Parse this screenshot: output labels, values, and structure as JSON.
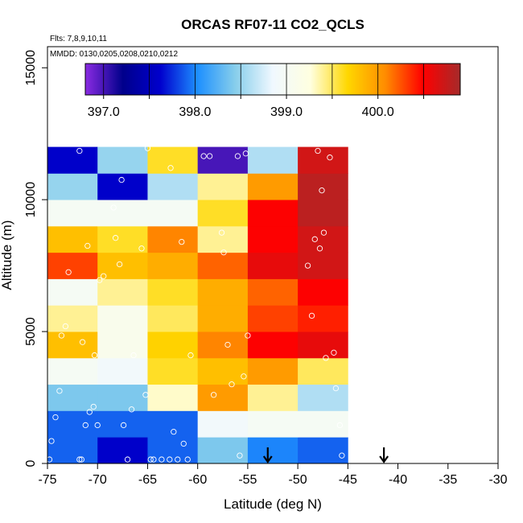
{
  "chart_data": {
    "type": "heatmap",
    "title": "ORCAS RF07-11 CO2_QCLS",
    "subtitle_flights": "Flts: 7,8,9,10,11",
    "subtitle_dates": "MMDD: 0130,0205,0208,0210,0212",
    "xlabel": "Latitude (deg N)",
    "ylabel": "Altitude (m)",
    "xlim": [
      -75,
      -30
    ],
    "ylim": [
      0,
      15800
    ],
    "x_ticks": [
      -75,
      -70,
      -65,
      -60,
      -55,
      -50,
      -45,
      -40,
      -35,
      -30
    ],
    "x_tick_labels": [
      "-75",
      "-70",
      "-65",
      "-60",
      "-55",
      "-50",
      "-45",
      "-40",
      "-35",
      "-30"
    ],
    "y_ticks": [
      0,
      5000,
      10000,
      15000
    ],
    "y_tick_labels": [
      "0",
      "5000",
      "10000",
      "15000"
    ],
    "colorbar": {
      "min": 396.8,
      "max": 400.9,
      "tick_values": [
        397.0,
        398.0,
        399.0,
        400.0
      ],
      "tick_labels": [
        "397.0",
        "398.0",
        "399.0",
        "400.0"
      ],
      "colors": [
        "#8a2be2",
        "#00008b",
        "#0000cd",
        "#1e90ff",
        "#87ceeb",
        "#f0f8ff",
        "#ffffe0",
        "#ffd700",
        "#ff8c00",
        "#ff0000",
        "#a52a2a"
      ]
    },
    "lat_bin_edges": [
      -75,
      -70,
      -65,
      -60,
      -55,
      -50,
      -45
    ],
    "alt_bin_edges": [
      0,
      1000,
      2000,
      3000,
      4000,
      5000,
      6000,
      7000,
      8000,
      9000,
      10000,
      11000,
      12000
    ],
    "grid_values": [
      [
        397.9,
        397.6,
        397.9,
        398.4,
        398.0,
        397.9
      ],
      [
        397.9,
        397.9,
        397.9,
        398.9,
        399.0,
        399.0
      ],
      [
        398.4,
        398.4,
        399.3,
        400.0,
        399.4,
        398.6
      ],
      [
        399.0,
        398.9,
        399.6,
        399.8,
        400.0,
        399.5
      ],
      [
        399.8,
        399.1,
        399.7,
        400.1,
        400.5,
        400.6
      ],
      [
        399.4,
        399.1,
        399.5,
        399.9,
        400.3,
        400.4
      ],
      [
        399.0,
        399.4,
        399.6,
        399.9,
        400.2,
        400.5
      ],
      [
        400.3,
        399.8,
        399.9,
        400.2,
        400.6,
        400.7
      ],
      [
        399.8,
        399.6,
        400.1,
        399.4,
        400.5,
        400.7
      ],
      [
        399.0,
        399.0,
        399.0,
        399.6,
        400.5,
        400.8
      ],
      [
        398.5,
        397.6,
        398.6,
        399.4,
        400.0,
        400.8
      ],
      [
        397.6,
        398.5,
        399.6,
        397.0,
        398.6,
        400.7
      ]
    ],
    "observations": [
      [
        -74.8,
        150
      ],
      [
        -74.6,
        850
      ],
      [
        -74.2,
        1750
      ],
      [
        -73.8,
        2750
      ],
      [
        -72.9,
        7250
      ],
      [
        -73.6,
        4850
      ],
      [
        -73.2,
        5200
      ],
      [
        -71.8,
        11850
      ],
      [
        -71.6,
        150
      ],
      [
        -71.8,
        150
      ],
      [
        -71.2,
        1450
      ],
      [
        -70.8,
        1950
      ],
      [
        -70.4,
        2150
      ],
      [
        -70.0,
        1450
      ],
      [
        -71.0,
        8250
      ],
      [
        -71.5,
        4600
      ],
      [
        -70.3,
        4100
      ],
      [
        -69.8,
        6950
      ],
      [
        -69.4,
        7100
      ],
      [
        -68.4,
        9700
      ],
      [
        -68.2,
        8550
      ],
      [
        -67.8,
        7550
      ],
      [
        -67.6,
        10750
      ],
      [
        -67.4,
        1450
      ],
      [
        -67.0,
        150
      ],
      [
        -66.6,
        2050
      ],
      [
        -66.4,
        4100
      ],
      [
        -65.6,
        8150
      ],
      [
        -65.2,
        2600
      ],
      [
        -65.0,
        11950
      ],
      [
        -64.7,
        150
      ],
      [
        -64.4,
        150
      ],
      [
        -63.6,
        150
      ],
      [
        -62.8,
        150
      ],
      [
        -62.7,
        11200
      ],
      [
        -62.4,
        1200
      ],
      [
        -62.0,
        150
      ],
      [
        -61.6,
        8400
      ],
      [
        -61.4,
        750
      ],
      [
        -61.0,
        150
      ],
      [
        -60.7,
        4100
      ],
      [
        -59.4,
        11650
      ],
      [
        -58.8,
        11650
      ],
      [
        -58.4,
        2600
      ],
      [
        -57.6,
        8750
      ],
      [
        -57.4,
        8000
      ],
      [
        -57.0,
        4500
      ],
      [
        -56.6,
        3000
      ],
      [
        -56.0,
        11650
      ],
      [
        -55.8,
        300
      ],
      [
        -55.4,
        3300
      ],
      [
        -55.2,
        11750
      ],
      [
        -55.0,
        4850
      ],
      [
        -49.0,
        7500
      ],
      [
        -48.6,
        5600
      ],
      [
        -48.3,
        8500
      ],
      [
        -48.0,
        11850
      ],
      [
        -47.8,
        8150
      ],
      [
        -47.6,
        10350
      ],
      [
        -47.4,
        8750
      ],
      [
        -47.2,
        4000
      ],
      [
        -46.8,
        11600
      ],
      [
        -46.4,
        4200
      ],
      [
        -46.2,
        2850
      ],
      [
        -45.8,
        1450
      ],
      [
        -45.6,
        300
      ]
    ],
    "markers": {
      "arrow_latitudes": [
        -53.0,
        -41.4
      ]
    }
  }
}
